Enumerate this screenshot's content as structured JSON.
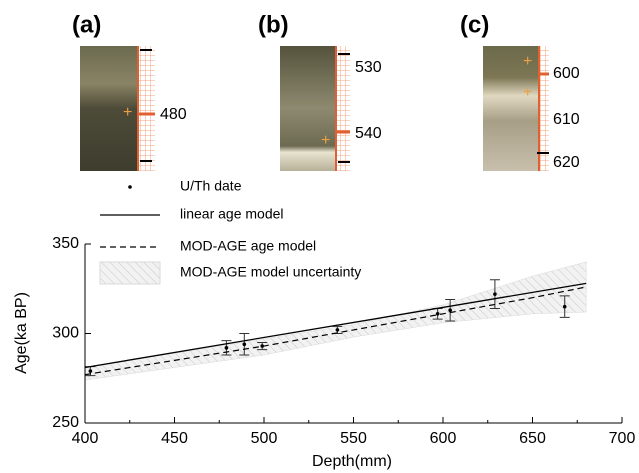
{
  "panels": [
    {
      "label": "(a)",
      "scale": [
        "480"
      ]
    },
    {
      "label": "(b)",
      "scale": [
        "530",
        "540"
      ]
    },
    {
      "label": "(c)",
      "scale": [
        "600",
        "610",
        "620"
      ]
    }
  ],
  "chart_data": {
    "type": "line",
    "x_label": "Depth(mm)",
    "y_label": "Age(ka BP)",
    "xlim": [
      400,
      700
    ],
    "xticks": [
      400,
      450,
      500,
      550,
      600,
      650,
      700
    ],
    "ylim": [
      250,
      350
    ],
    "yticks": [
      250,
      300,
      350
    ],
    "series": [
      {
        "name": "U/Th date",
        "kind": "scatter",
        "color": "#000000",
        "x": [
          403,
          479,
          489,
          499,
          541,
          597,
          604,
          629,
          668
        ],
        "values": [
          279,
          292,
          294,
          293,
          302,
          311,
          313,
          322,
          315
        ],
        "errors": [
          2.5,
          4,
          6,
          2,
          2,
          3,
          6,
          8,
          6
        ]
      },
      {
        "name": "linear age model",
        "kind": "line",
        "color": "#000000",
        "x": [
          400,
          680
        ],
        "values": [
          281,
          328
        ]
      },
      {
        "name": "MOD-AGE age model",
        "kind": "dashed",
        "color": "#000000",
        "x": [
          400,
          450,
          500,
          550,
          600,
          650,
          680
        ],
        "values": [
          277,
          285,
          293,
          302,
          311,
          320,
          326
        ]
      },
      {
        "name": "MOD-AGE model uncertainty",
        "kind": "band",
        "color": "#d9d9d9",
        "x": [
          400,
          450,
          500,
          550,
          600,
          650,
          680
        ],
        "upper": [
          281,
          289,
          297,
          305,
          316,
          332,
          340
        ],
        "lower": [
          274,
          281,
          288,
          298,
          306,
          311,
          312
        ]
      }
    ]
  }
}
